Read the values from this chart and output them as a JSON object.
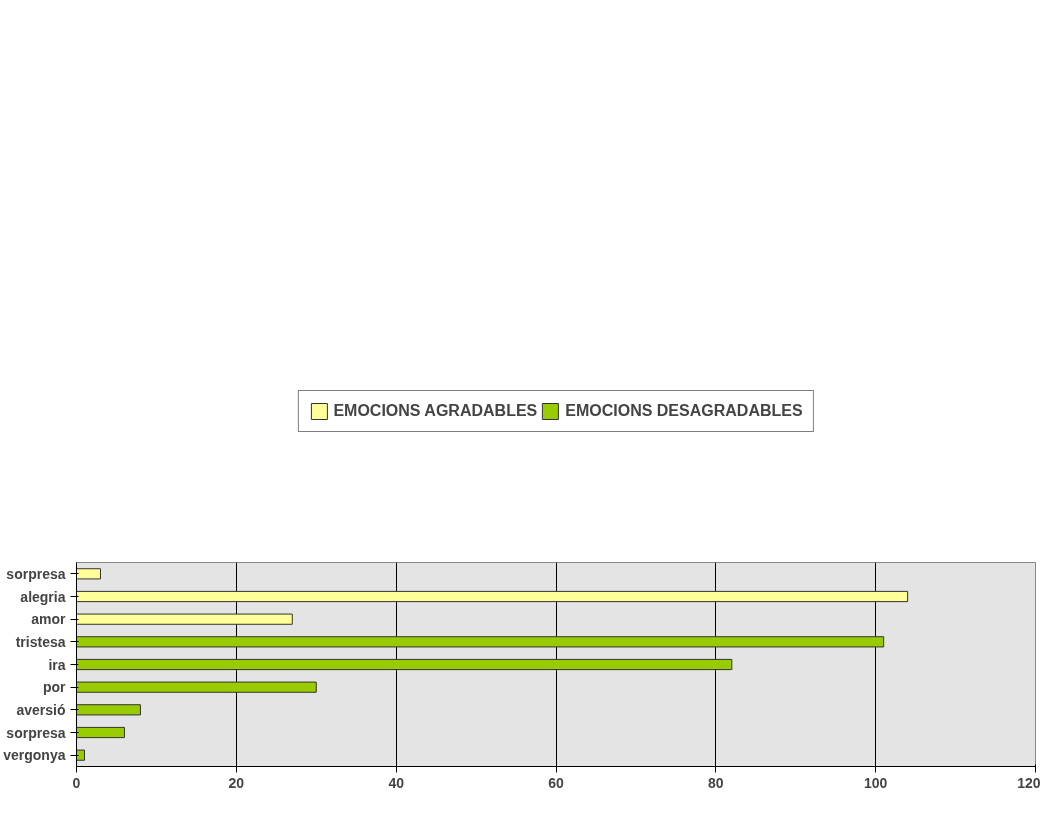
{
  "chart_data": {
    "type": "bar",
    "orientation": "horizontal",
    "categories": [
      "sorpresa",
      "alegria",
      "amor",
      "tristesa",
      "ira",
      "por",
      "aversió",
      "sorpresa",
      "vergonya"
    ],
    "series": [
      {
        "name": "EMOCIONS AGRADABLES",
        "color": "#ffff99",
        "values": [
          3,
          104,
          27,
          null,
          null,
          null,
          null,
          null,
          null
        ]
      },
      {
        "name": "EMOCIONS DESAGRADABLES",
        "color": "#99cc00",
        "values": [
          null,
          null,
          null,
          101,
          82,
          30,
          8,
          6,
          1
        ]
      }
    ],
    "xlim": [
      0,
      120
    ],
    "xticks": [
      0,
      20,
      40,
      60,
      80,
      100,
      120
    ],
    "grid": "x",
    "legend": "top"
  }
}
